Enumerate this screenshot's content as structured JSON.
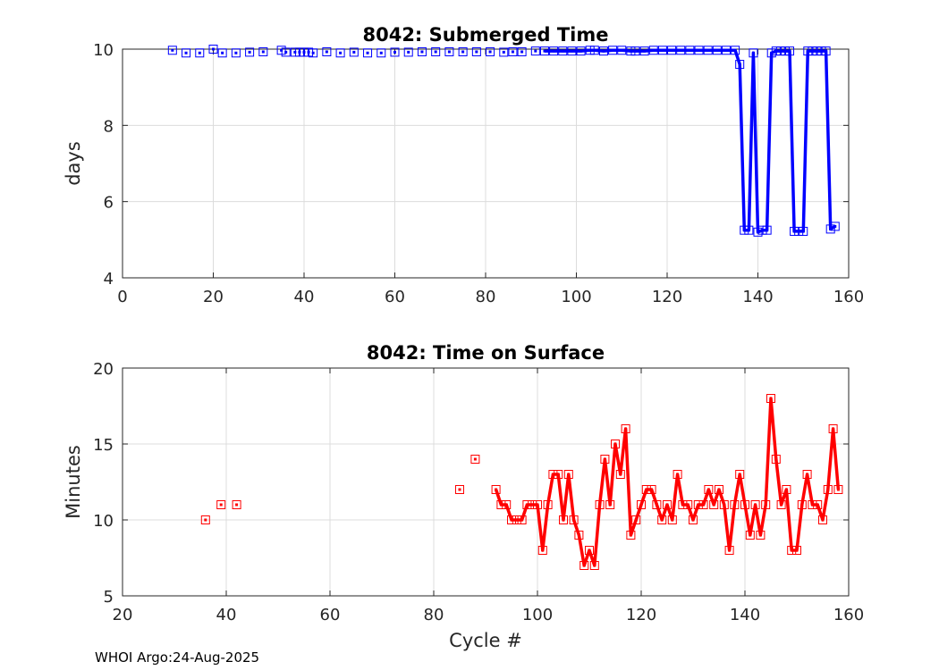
{
  "footer": "WHOI Argo:24-Aug-2025",
  "chart_data": [
    {
      "type": "line",
      "title": "8042: Submerged Time",
      "xlabel": "",
      "ylabel": "days",
      "xlim": [
        0,
        160
      ],
      "ylim": [
        4,
        10
      ],
      "xticks": [
        0,
        20,
        40,
        60,
        80,
        100,
        120,
        140,
        160
      ],
      "yticks": [
        4,
        6,
        8,
        10
      ],
      "color": "#0000ff",
      "grid": true,
      "series": [
        {
          "name": "Submerged Time",
          "x": [
            11,
            14,
            17,
            20,
            22,
            25,
            28,
            31,
            35,
            36,
            38,
            39,
            40,
            41,
            42,
            45,
            48,
            51,
            54,
            57,
            60,
            63,
            66,
            69,
            72,
            75,
            78,
            81,
            84,
            86,
            88,
            91,
            93,
            95,
            97,
            99,
            101,
            103,
            104,
            106,
            108,
            110,
            112,
            113,
            115,
            117,
            119,
            121,
            123,
            125,
            127,
            129,
            131,
            133,
            135,
            136,
            137,
            138,
            139,
            140,
            141,
            142,
            143,
            144,
            145,
            146,
            147,
            148,
            149,
            150,
            151,
            152,
            153,
            154,
            155,
            156,
            157
          ],
          "y": [
            9.97,
            9.9,
            9.9,
            10.0,
            9.9,
            9.9,
            9.92,
            9.93,
            9.97,
            9.92,
            9.92,
            9.92,
            9.92,
            9.92,
            9.9,
            9.93,
            9.9,
            9.92,
            9.9,
            9.9,
            9.92,
            9.92,
            9.93,
            9.93,
            9.93,
            9.93,
            9.93,
            9.93,
            9.92,
            9.93,
            9.93,
            9.95,
            9.95,
            9.95,
            9.95,
            9.95,
            9.95,
            9.97,
            9.97,
            9.95,
            9.97,
            9.97,
            9.95,
            9.95,
            9.95,
            9.97,
            9.97,
            9.97,
            9.97,
            9.97,
            9.97,
            9.97,
            9.97,
            9.97,
            9.97,
            9.6,
            5.25,
            5.25,
            9.9,
            5.2,
            5.25,
            5.25,
            9.9,
            9.95,
            9.95,
            9.95,
            9.95,
            5.22,
            5.22,
            5.22,
            9.95,
            9.95,
            9.95,
            9.95,
            9.95,
            5.28,
            5.35
          ],
          "connected_from_x": 92
        }
      ]
    },
    {
      "type": "line",
      "title": "8042: Time on Surface",
      "xlabel": "Cycle #",
      "ylabel": "Minutes",
      "xlim": [
        20,
        160
      ],
      "ylim": [
        5,
        20
      ],
      "xticks": [
        20,
        40,
        60,
        80,
        100,
        120,
        140,
        160
      ],
      "yticks": [
        5,
        10,
        15,
        20
      ],
      "color": "#ff0000",
      "grid": true,
      "series": [
        {
          "name": "Time on Surface",
          "x": [
            36,
            39,
            42,
            85,
            88,
            92,
            93,
            94,
            95,
            96,
            97,
            98,
            99,
            100,
            101,
            102,
            103,
            104,
            105,
            106,
            107,
            108,
            109,
            110,
            111,
            112,
            113,
            114,
            115,
            116,
            117,
            118,
            119,
            120,
            121,
            122,
            123,
            124,
            125,
            126,
            127,
            128,
            129,
            130,
            131,
            132,
            133,
            134,
            135,
            136,
            137,
            138,
            139,
            140,
            141,
            142,
            143,
            144,
            145,
            146,
            147,
            148,
            149,
            150,
            151,
            152,
            153,
            154,
            155,
            156,
            157,
            158
          ],
          "y": [
            10,
            11,
            11,
            12,
            14,
            12,
            11,
            11,
            10,
            10,
            10,
            11,
            11,
            11,
            8,
            11,
            13,
            13,
            10,
            13,
            10,
            9,
            7,
            8,
            7,
            11,
            14,
            11,
            15,
            13,
            16,
            9,
            10,
            11,
            12,
            12,
            11,
            10,
            11,
            10,
            13,
            11,
            11,
            10,
            11,
            11,
            12,
            11,
            12,
            11,
            8,
            11,
            13,
            11,
            9,
            11,
            9,
            11,
            18,
            14,
            11,
            12,
            8,
            8,
            11,
            13,
            11,
            11,
            10,
            12,
            16,
            12
          ],
          "connected_from_x": 92
        }
      ]
    }
  ]
}
